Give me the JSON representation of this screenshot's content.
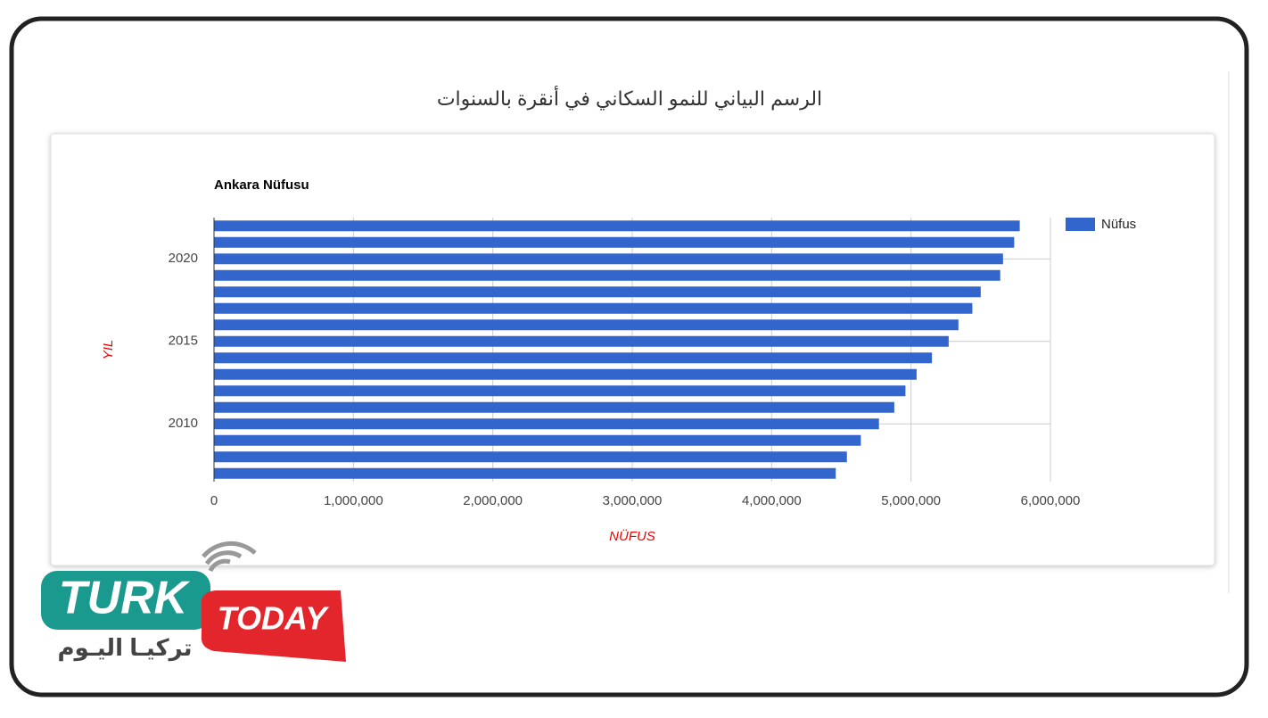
{
  "page_title": "الرسم البياني للنمو السكاني في أنقرة بالسنوات",
  "logo": {
    "word1": "TURK",
    "word2": "TODAY",
    "arabic": "تركيـا اليـوم"
  },
  "chart_data": {
    "type": "bar",
    "orientation": "horizontal",
    "title": "Ankara Nüfusu",
    "x_label": "NÜFUS",
    "y_label": "YIL",
    "categories": [
      null,
      null,
      "2020",
      null,
      null,
      null,
      null,
      "2015",
      null,
      null,
      null,
      null,
      "2010",
      null,
      null,
      null
    ],
    "series": [
      {
        "name": "Nüfus",
        "color": "#3366cc",
        "values": [
          5780000,
          5740000,
          5660000,
          5640000,
          5500000,
          5440000,
          5340000,
          5270000,
          5150000,
          5040000,
          4960000,
          4880000,
          4770000,
          4640000,
          4540000,
          4460000
        ]
      }
    ],
    "xlim": [
      0,
      6000000
    ],
    "xticks": [
      0,
      {
        "value": 1000000,
        "label": "1,000,000"
      },
      {
        "value": 2000000,
        "label": "2,000,000"
      },
      {
        "value": 3000000,
        "label": "3,000,000"
      },
      {
        "value": 4000000,
        "label": "4,000,000"
      },
      {
        "value": 5000000,
        "label": "5,000,000"
      },
      {
        "value": 6000000,
        "label": "6,000,000"
      }
    ],
    "grid": true,
    "legend": "right"
  }
}
